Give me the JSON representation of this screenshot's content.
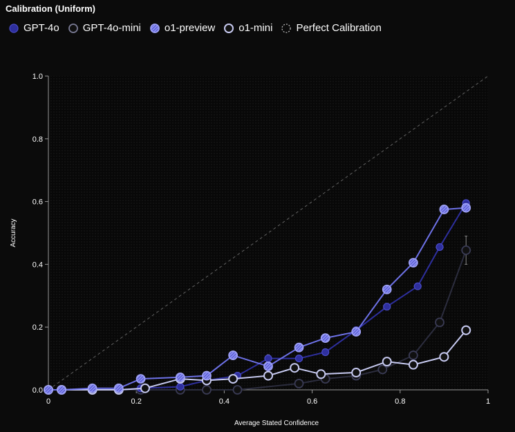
{
  "chart_data": {
    "type": "line",
    "title": "Calibration (Uniform)",
    "xlabel": "Average Stated Confidence",
    "ylabel": "Accuracy",
    "xlim": [
      0,
      1
    ],
    "ylim": [
      0,
      1
    ],
    "x_ticks": [
      "0",
      "0.2",
      "0.4",
      "0.6",
      "0.8",
      "1"
    ],
    "y_ticks": [
      "0.0",
      "0.2",
      "0.4",
      "0.6",
      "0.8",
      "1.0"
    ],
    "legend_position": "top-left",
    "series": [
      {
        "name": "GPT-4o",
        "color": "#2e2f9e",
        "marker": "filled",
        "x": [
          0.0,
          0.03,
          0.1,
          0.16,
          0.21,
          0.3,
          0.36,
          0.43,
          0.5,
          0.57,
          0.63,
          0.7,
          0.77,
          0.84,
          0.89,
          0.95
        ],
        "y": [
          0.0,
          0.0,
          0.0,
          0.0,
          0.005,
          0.01,
          0.03,
          0.045,
          0.1,
          0.1,
          0.12,
          0.19,
          0.265,
          0.33,
          0.455,
          0.595
        ],
        "error_bars": [
          0,
          0,
          0,
          0,
          0,
          0,
          0,
          0,
          0.012,
          0.01,
          0,
          0,
          0,
          0,
          0,
          0.01
        ]
      },
      {
        "name": "GPT-4o-mini",
        "color": "#2c2d3e",
        "marker": "hollow-dark",
        "x": [
          0.0,
          0.03,
          0.1,
          0.16,
          0.21,
          0.3,
          0.36,
          0.43,
          0.57,
          0.63,
          0.7,
          0.76,
          0.83,
          0.89,
          0.95
        ],
        "y": [
          0.0,
          0.0,
          0.0,
          0.0,
          0.0,
          0.0,
          0.0,
          0.0,
          0.02,
          0.035,
          0.045,
          0.065,
          0.11,
          0.215,
          0.445
        ],
        "error_bars": [
          0,
          0,
          0,
          0,
          0,
          0,
          0,
          0,
          0,
          0,
          0,
          0,
          0,
          0,
          0.045
        ]
      },
      {
        "name": "o1-preview",
        "color": "#6e72e8",
        "marker": "hatched",
        "x": [
          0.0,
          0.03,
          0.1,
          0.16,
          0.21,
          0.3,
          0.36,
          0.42,
          0.5,
          0.57,
          0.63,
          0.7,
          0.77,
          0.83,
          0.9,
          0.95
        ],
        "y": [
          0.0,
          0.0,
          0.005,
          0.005,
          0.035,
          0.04,
          0.045,
          0.11,
          0.075,
          0.135,
          0.165,
          0.185,
          0.32,
          0.405,
          0.575,
          0.58
        ],
        "error_bars": [
          0,
          0,
          0,
          0,
          0,
          0,
          0.008,
          0.012,
          0,
          0.01,
          0,
          0,
          0,
          0,
          0,
          0.01
        ]
      },
      {
        "name": "o1-mini",
        "color": "#c8cbf2",
        "marker": "hollow-light",
        "x": [
          0.0,
          0.03,
          0.1,
          0.16,
          0.22,
          0.3,
          0.36,
          0.42,
          0.5,
          0.56,
          0.62,
          0.7,
          0.77,
          0.83,
          0.9,
          0.95
        ],
        "y": [
          0.0,
          0.0,
          0.0,
          0.0,
          0.005,
          0.035,
          0.03,
          0.035,
          0.045,
          0.07,
          0.05,
          0.055,
          0.09,
          0.08,
          0.105,
          0.19
        ]
      },
      {
        "name": "Perfect Calibration",
        "color": "#8a8a8a",
        "marker": "dashed",
        "x": [
          0,
          1
        ],
        "y": [
          0,
          1
        ]
      }
    ]
  }
}
